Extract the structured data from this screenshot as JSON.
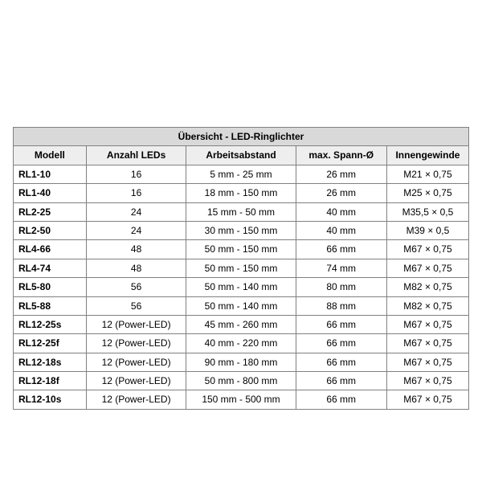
{
  "table": {
    "type": "table",
    "title": "Übersicht - LED-Ringlichter",
    "columns": [
      "Modell",
      "Anzahl LEDs",
      "Arbeitsabstand",
      "max. Spann-Ø",
      "Innengewinde"
    ],
    "column_widths_pct": [
      16,
      22,
      24,
      20,
      18
    ],
    "title_bg": "#d9d9d9",
    "header_bg": "#eeeeee",
    "cell_bg": "#ffffff",
    "border_color": "#808080",
    "font_family": "Arial",
    "title_fontsize_pt": 9,
    "header_fontsize_pt": 9,
    "cell_fontsize_pt": 9,
    "text_color": "#000000",
    "rows": [
      [
        "RL1-10",
        "16",
        "5 mm - 25 mm",
        "26 mm",
        "M21 × 0,75"
      ],
      [
        "RL1-40",
        "16",
        "18 mm - 150 mm",
        "26 mm",
        "M25 × 0,75"
      ],
      [
        "RL2-25",
        "24",
        "15 mm - 50 mm",
        "40 mm",
        "M35,5 × 0,5"
      ],
      [
        "RL2-50",
        "24",
        "30 mm - 150 mm",
        "40 mm",
        "M39 × 0,5"
      ],
      [
        "RL4-66",
        "48",
        "50 mm - 150 mm",
        "66 mm",
        "M67 × 0,75"
      ],
      [
        "RL4-74",
        "48",
        "50 mm - 150 mm",
        "74 mm",
        "M67 × 0,75"
      ],
      [
        "RL5-80",
        "56",
        "50 mm - 140 mm",
        "80 mm",
        "M82 × 0,75"
      ],
      [
        "RL5-88",
        "56",
        "50 mm - 140 mm",
        "88 mm",
        "M82 × 0,75"
      ],
      [
        "RL12-25s",
        "12 (Power-LED)",
        "45 mm - 260 mm",
        "66 mm",
        "M67 × 0,75"
      ],
      [
        "RL12-25f",
        "12 (Power-LED)",
        "40 mm - 220 mm",
        "66 mm",
        "M67 × 0,75"
      ],
      [
        "RL12-18s",
        "12 (Power-LED)",
        "90 mm - 180 mm",
        "66 mm",
        "M67 × 0,75"
      ],
      [
        "RL12-18f",
        "12 (Power-LED)",
        "50 mm - 800 mm",
        "66 mm",
        "M67 × 0,75"
      ],
      [
        "RL12-10s",
        "12 (Power-LED)",
        "150 mm - 500 mm",
        "66 mm",
        "M67 × 0,75"
      ]
    ]
  }
}
